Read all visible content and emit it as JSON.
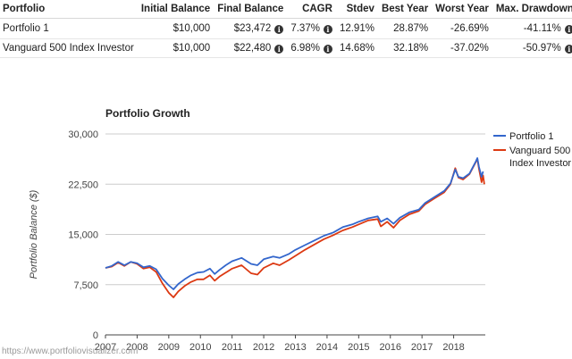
{
  "table": {
    "headers": [
      "Portfolio",
      "Initial Balance",
      "Final Balance",
      "CAGR",
      "Stdev",
      "Best Year",
      "Worst Year",
      "Max. Drawdown"
    ],
    "info_icon": "info-circle-icon",
    "rows": [
      {
        "portfolio": "Portfolio 1",
        "initial": "$10,000",
        "final": "$23,472",
        "cagr": "7.37%",
        "stdev": "12.91%",
        "best": "28.87%",
        "worst": "-26.69%",
        "drawdown": "-41.11%"
      },
      {
        "portfolio": "Vanguard 500 Index Investor",
        "initial": "$10,000",
        "final": "$22,480",
        "cagr": "6.98%",
        "stdev": "14.68%",
        "best": "32.18%",
        "worst": "-37.02%",
        "drawdown": "-50.97%"
      }
    ]
  },
  "watermark": "https://www.portfoliovisualizer.com",
  "chart_data": {
    "type": "line",
    "title": "Portfolio Growth",
    "xlabel": "",
    "ylabel": "Portfolio Balance ($)",
    "ylim": [
      0,
      30000
    ],
    "xlim": [
      2007,
      2019
    ],
    "x_ticks": [
      "2007",
      "2008",
      "2009",
      "2010",
      "2011",
      "2012",
      "2013",
      "2014",
      "2015",
      "2016",
      "2017",
      "2018"
    ],
    "y_ticks": [
      "0",
      "7,500",
      "15,000",
      "22,500",
      "30,000"
    ],
    "grid": true,
    "legend_position": "right",
    "series": [
      {
        "name": "Portfolio 1",
        "color": "#3366cc",
        "points": [
          [
            2007.0,
            10000
          ],
          [
            2007.2,
            10300
          ],
          [
            2007.4,
            10900
          ],
          [
            2007.6,
            10400
          ],
          [
            2007.8,
            10900
          ],
          [
            2008.0,
            10700
          ],
          [
            2008.2,
            10100
          ],
          [
            2008.4,
            10300
          ],
          [
            2008.6,
            9800
          ],
          [
            2008.8,
            8400
          ],
          [
            2009.0,
            7400
          ],
          [
            2009.15,
            6800
          ],
          [
            2009.3,
            7600
          ],
          [
            2009.5,
            8300
          ],
          [
            2009.7,
            8900
          ],
          [
            2009.9,
            9300
          ],
          [
            2010.1,
            9400
          ],
          [
            2010.3,
            9900
          ],
          [
            2010.45,
            9100
          ],
          [
            2010.6,
            9700
          ],
          [
            2010.8,
            10400
          ],
          [
            2011.0,
            11000
          ],
          [
            2011.3,
            11500
          ],
          [
            2011.6,
            10600
          ],
          [
            2011.8,
            10400
          ],
          [
            2012.0,
            11300
          ],
          [
            2012.3,
            11700
          ],
          [
            2012.5,
            11500
          ],
          [
            2012.8,
            12100
          ],
          [
            2013.0,
            12700
          ],
          [
            2013.3,
            13400
          ],
          [
            2013.6,
            14100
          ],
          [
            2013.9,
            14800
          ],
          [
            2014.2,
            15300
          ],
          [
            2014.5,
            16100
          ],
          [
            2014.8,
            16500
          ],
          [
            2015.0,
            16900
          ],
          [
            2015.3,
            17400
          ],
          [
            2015.6,
            17700
          ],
          [
            2015.7,
            16900
          ],
          [
            2015.9,
            17400
          ],
          [
            2016.1,
            16600
          ],
          [
            2016.3,
            17500
          ],
          [
            2016.6,
            18300
          ],
          [
            2016.9,
            18700
          ],
          [
            2017.1,
            19700
          ],
          [
            2017.4,
            20600
          ],
          [
            2017.7,
            21500
          ],
          [
            2017.9,
            22600
          ],
          [
            2018.05,
            24700
          ],
          [
            2018.15,
            23600
          ],
          [
            2018.3,
            23400
          ],
          [
            2018.5,
            24100
          ],
          [
            2018.7,
            25900
          ],
          [
            2018.75,
            26400
          ],
          [
            2018.8,
            25100
          ],
          [
            2018.88,
            23600
          ],
          [
            2018.93,
            24400
          ]
        ]
      },
      {
        "name": "Vanguard 500 Index Investor",
        "color": "#dc3912",
        "points": [
          [
            2007.0,
            10000
          ],
          [
            2007.2,
            10200
          ],
          [
            2007.4,
            10800
          ],
          [
            2007.6,
            10300
          ],
          [
            2007.8,
            10900
          ],
          [
            2008.0,
            10600
          ],
          [
            2008.2,
            9900
          ],
          [
            2008.4,
            10100
          ],
          [
            2008.6,
            9400
          ],
          [
            2008.8,
            7700
          ],
          [
            2009.0,
            6300
          ],
          [
            2009.15,
            5600
          ],
          [
            2009.3,
            6500
          ],
          [
            2009.5,
            7300
          ],
          [
            2009.7,
            7900
          ],
          [
            2009.9,
            8300
          ],
          [
            2010.1,
            8300
          ],
          [
            2010.3,
            8900
          ],
          [
            2010.45,
            8100
          ],
          [
            2010.6,
            8700
          ],
          [
            2010.8,
            9300
          ],
          [
            2011.0,
            9900
          ],
          [
            2011.3,
            10400
          ],
          [
            2011.6,
            9200
          ],
          [
            2011.8,
            9000
          ],
          [
            2012.0,
            10000
          ],
          [
            2012.3,
            10700
          ],
          [
            2012.5,
            10400
          ],
          [
            2012.8,
            11200
          ],
          [
            2013.0,
            11800
          ],
          [
            2013.3,
            12700
          ],
          [
            2013.6,
            13500
          ],
          [
            2013.9,
            14300
          ],
          [
            2014.2,
            14900
          ],
          [
            2014.5,
            15600
          ],
          [
            2014.8,
            16100
          ],
          [
            2015.0,
            16500
          ],
          [
            2015.3,
            17100
          ],
          [
            2015.6,
            17300
          ],
          [
            2015.7,
            16200
          ],
          [
            2015.9,
            16900
          ],
          [
            2016.1,
            16000
          ],
          [
            2016.3,
            17100
          ],
          [
            2016.6,
            18000
          ],
          [
            2016.9,
            18500
          ],
          [
            2017.1,
            19500
          ],
          [
            2017.4,
            20400
          ],
          [
            2017.7,
            21300
          ],
          [
            2017.9,
            22500
          ],
          [
            2018.05,
            24900
          ],
          [
            2018.15,
            23500
          ],
          [
            2018.3,
            23200
          ],
          [
            2018.5,
            24000
          ],
          [
            2018.7,
            25800
          ],
          [
            2018.75,
            26300
          ],
          [
            2018.8,
            24800
          ],
          [
            2018.88,
            22800
          ],
          [
            2018.93,
            23800
          ],
          [
            2018.97,
            22500
          ]
        ]
      }
    ]
  }
}
